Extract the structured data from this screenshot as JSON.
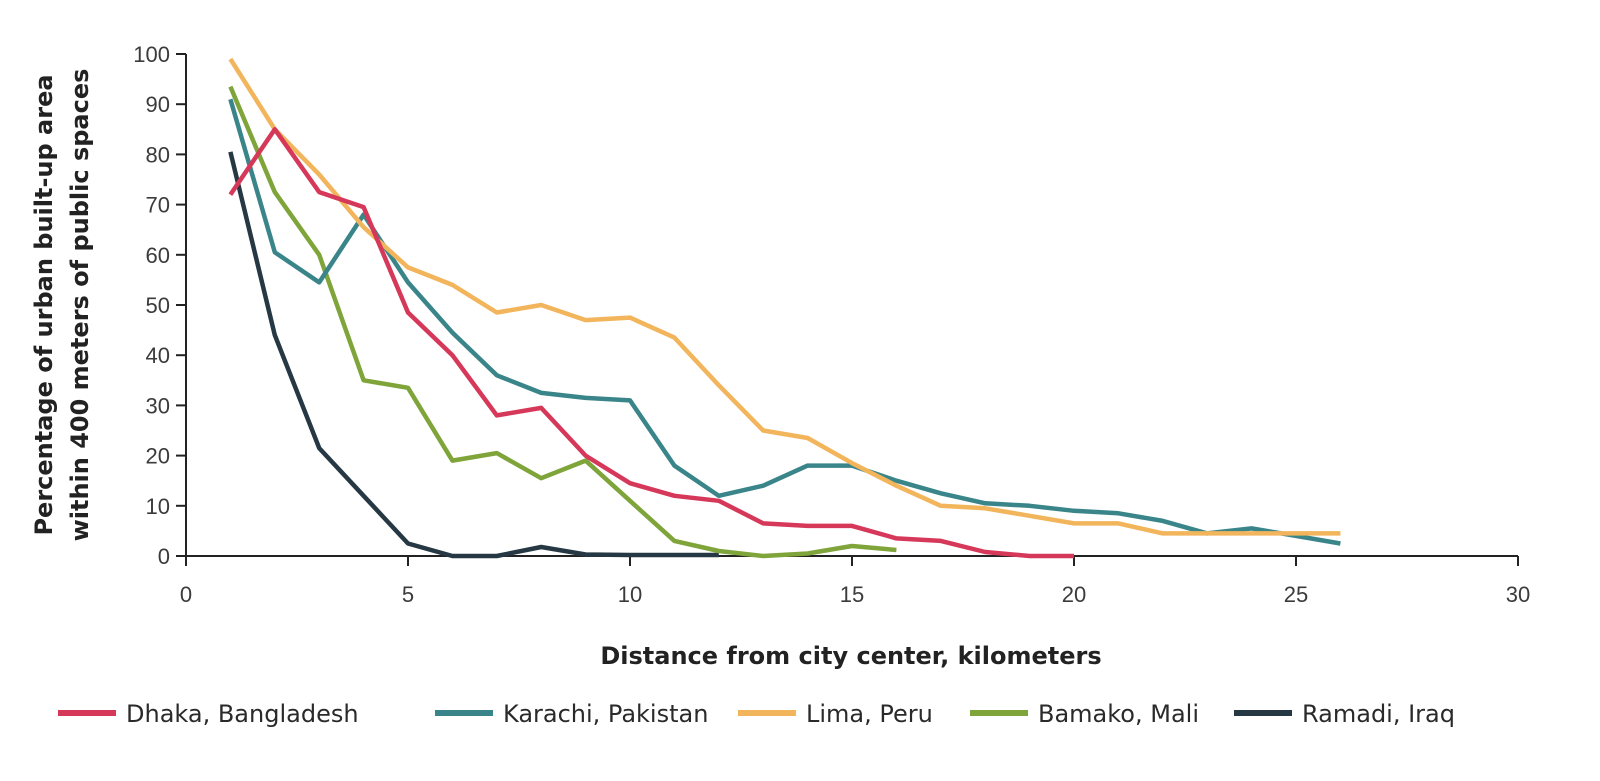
{
  "chart_data": {
    "type": "line",
    "title": "",
    "xlabel": "Distance from city center, kilometers",
    "ylabel_lines": [
      "Percentage of urban built-up area",
      "within 400 meters of public spaces"
    ],
    "xlim": [
      0,
      30
    ],
    "ylim": [
      0,
      100
    ],
    "x_ticks": [
      0,
      5,
      10,
      15,
      20,
      25,
      30
    ],
    "y_ticks": [
      0,
      10,
      20,
      30,
      40,
      50,
      60,
      70,
      80,
      90,
      100
    ],
    "grid": false,
    "legend_position": "bottom",
    "series": [
      {
        "name": "Dhaka, Bangladesh",
        "color": "#d6385a",
        "x": [
          1,
          2,
          3,
          4,
          5,
          6,
          7,
          8,
          9,
          10,
          11,
          12,
          13,
          14,
          15,
          16,
          17,
          18,
          19,
          20
        ],
        "y": [
          72,
          85,
          72.5,
          69.5,
          48.5,
          40,
          28,
          29.5,
          20,
          14.5,
          12,
          11,
          6.5,
          6,
          6,
          3.5,
          3,
          0.8,
          0,
          0
        ]
      },
      {
        "name": "Karachi, Pakistan",
        "color": "#3a8589",
        "x": [
          1,
          2,
          3,
          4,
          5,
          6,
          7,
          8,
          9,
          10,
          11,
          12,
          13,
          14,
          15,
          16,
          17,
          18,
          19,
          20,
          21,
          22,
          23,
          24,
          25,
          26
        ],
        "y": [
          91,
          60.5,
          54.5,
          68,
          54.5,
          44.5,
          36,
          32.5,
          31.5,
          31,
          18,
          12,
          14,
          18,
          18,
          15,
          12.5,
          10.5,
          10,
          9,
          8.5,
          7,
          4.5,
          5.5,
          4,
          2.5
        ]
      },
      {
        "name": "Lima, Peru",
        "color": "#f2b55c",
        "x": [
          1,
          2,
          3,
          4,
          5,
          6,
          7,
          8,
          9,
          10,
          11,
          12,
          13,
          14,
          15,
          16,
          17,
          18,
          19,
          20,
          21,
          22,
          23,
          24,
          25,
          26
        ],
        "y": [
          99,
          85,
          76,
          65.5,
          57.5,
          54,
          48.5,
          50,
          47,
          47.5,
          43.5,
          34,
          25,
          23.5,
          18.5,
          14,
          10,
          9.5,
          8,
          6.5,
          6.5,
          4.5,
          4.5,
          4.5,
          4.5,
          4.5
        ]
      },
      {
        "name": "Bamako, Mali",
        "color": "#7ea43a",
        "x": [
          1,
          2,
          3,
          4,
          5,
          6,
          7,
          8,
          9,
          10,
          11,
          12,
          13,
          14,
          15,
          16
        ],
        "y": [
          93.5,
          72.5,
          60,
          35,
          33.5,
          19,
          20.5,
          15.5,
          19,
          11,
          3,
          1,
          0,
          0.5,
          2,
          1.2
        ]
      },
      {
        "name": "Ramadi, Iraq",
        "color": "#263843",
        "x": [
          1,
          2,
          3,
          4,
          5,
          6,
          7,
          8,
          9,
          10,
          11,
          12
        ],
        "y": [
          80.5,
          44,
          21.5,
          12,
          2.5,
          0,
          0,
          1.8,
          0.3,
          0.2,
          0.2,
          0.2
        ]
      }
    ]
  }
}
